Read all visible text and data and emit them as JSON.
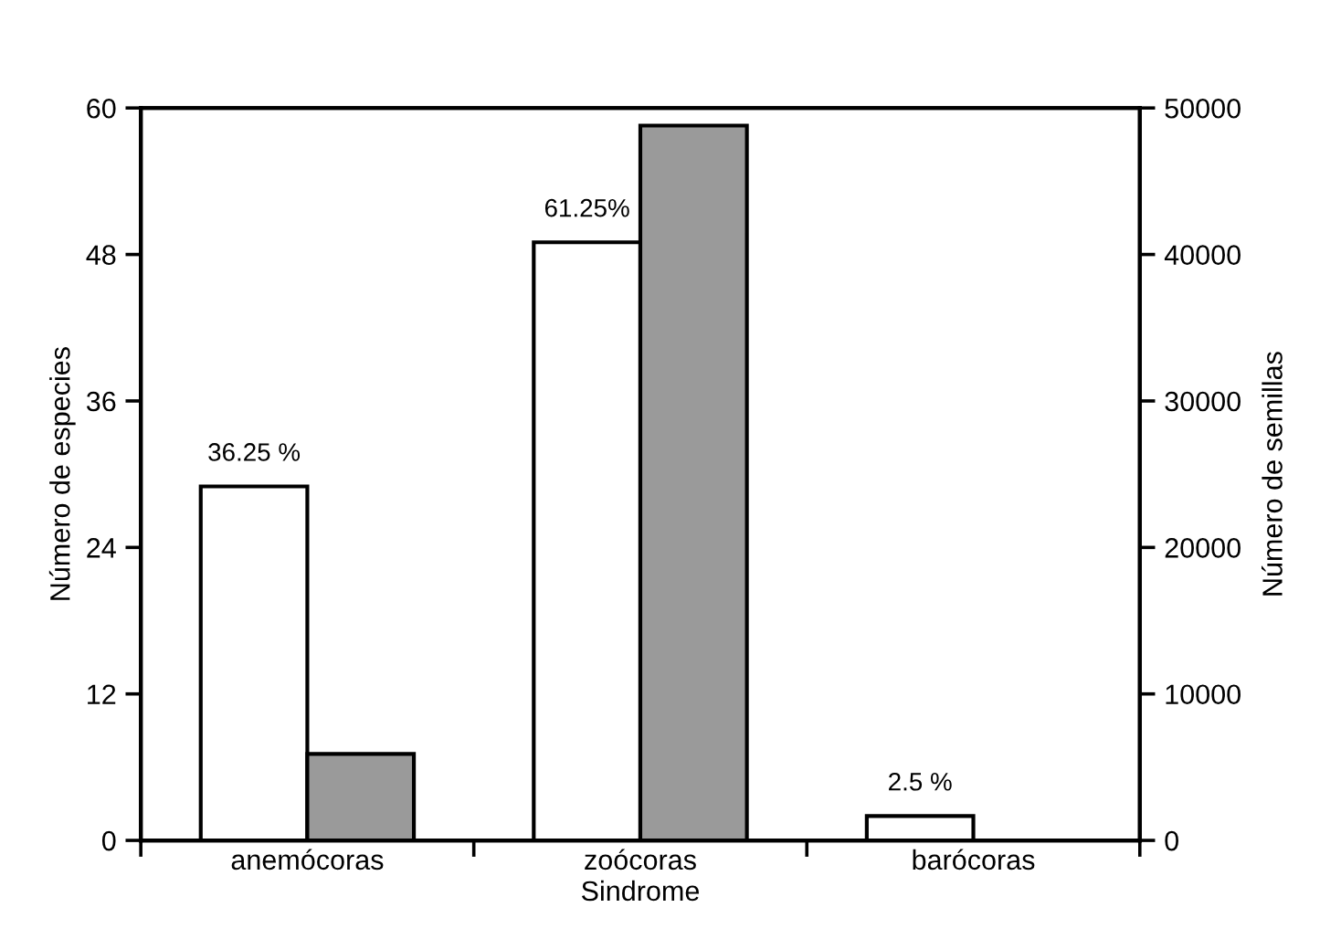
{
  "chart_data": {
    "type": "bar",
    "xlabel": "Sindrome",
    "ylabel": "Número de especies",
    "y2label": "Número de semillas",
    "categories": [
      "anemócoras",
      "zoócoras",
      "barócoras"
    ],
    "series": [
      {
        "color": "#ffffff",
        "values": [
          29,
          49,
          2
        ]
      },
      {
        "color": "#9a9a9a",
        "values": [
          5900,
          48800,
          null
        ],
        "axis": "y2"
      }
    ],
    "ylim": [
      0,
      60
    ],
    "yticks": [
      0,
      12,
      24,
      36,
      48,
      60
    ],
    "y2lim": [
      0,
      50000
    ],
    "y2ticks": [
      0,
      10000,
      20000,
      30000,
      40000,
      50000
    ],
    "annotations": [
      {
        "text": "36.25 %",
        "x": "anemócoras",
        "y": 29
      },
      {
        "text": "61.25%",
        "x": "zoócoras",
        "y": 49
      },
      {
        "text": "2.5 %",
        "x": "barócoras",
        "y": 2
      }
    ],
    "grid": false,
    "legend": false
  }
}
